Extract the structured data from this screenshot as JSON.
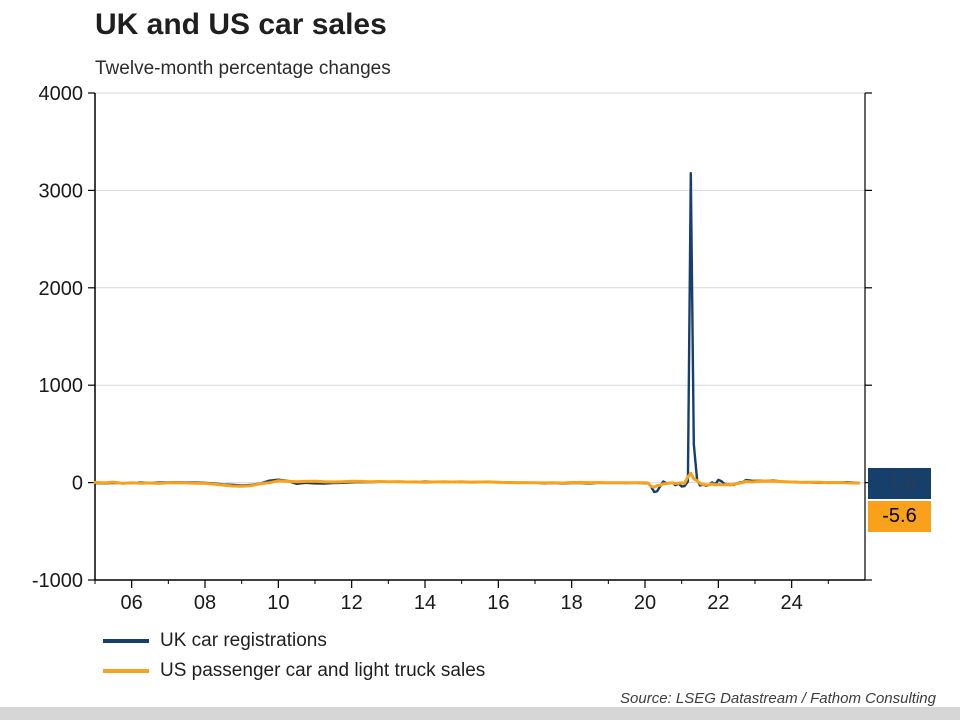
{
  "page": {
    "title": "UK and US car sales",
    "subtitle": "Twelve-month percentage changes",
    "source": "Source: LSEG Datastream / Fathom Consulting"
  },
  "colors": {
    "uk": "#16406b",
    "us": "#f9a11b",
    "grid": "#d9d9d9",
    "axis": "#000000",
    "strip": "#d6d6d6"
  },
  "badges": [
    {
      "label": "-1.6",
      "bg": "#16406b",
      "fg": "#2b3d52"
    },
    {
      "label": "-5.6",
      "bg": "#f9a11b",
      "fg": "#000000"
    }
  ],
  "legend": [
    {
      "label": "UK car registrations",
      "color": "#16406b"
    },
    {
      "label": "US passenger car and light truck sales",
      "color": "#f9a11b"
    }
  ],
  "chart_data": {
    "type": "line",
    "title": "UK and US car sales",
    "subtitle": "Twelve-month percentage changes",
    "xlabel": "",
    "ylabel": "",
    "xlim": [
      2005,
      2026
    ],
    "ylim": [
      -1000,
      4000
    ],
    "grid": "horizontal",
    "legend_position": "bottom-left",
    "y_ticks": [
      {
        "v": 4000,
        "label": "4000"
      },
      {
        "v": 3000,
        "label": "3000"
      },
      {
        "v": 2000,
        "label": "2000"
      },
      {
        "v": 1000,
        "label": "1000"
      },
      {
        "v": 0,
        "label": "0"
      },
      {
        "v": -1000,
        "label": "-1000"
      }
    ],
    "x_ticks": [
      {
        "v": 2006,
        "label": "06"
      },
      {
        "v": 2008,
        "label": "08"
      },
      {
        "v": 2010,
        "label": "10"
      },
      {
        "v": 2012,
        "label": "12"
      },
      {
        "v": 2014,
        "label": "14"
      },
      {
        "v": 2016,
        "label": "16"
      },
      {
        "v": 2018,
        "label": "18"
      },
      {
        "v": 2020,
        "label": "20"
      },
      {
        "v": 2022,
        "label": "22"
      },
      {
        "v": 2024,
        "label": "24"
      }
    ],
    "x_minor_ticks": [
      2005,
      2007,
      2009,
      2011,
      2013,
      2015,
      2017,
      2019,
      2021,
      2023,
      2025
    ],
    "annotations": [
      {
        "text": "-1.6",
        "series": "UK car registrations",
        "position": "end"
      },
      {
        "text": "-5.6",
        "series": "US passenger car and light truck sales",
        "position": "end"
      }
    ],
    "series": [
      {
        "name": "UK car registrations",
        "color": "#16406b",
        "width": 2.4,
        "points": [
          [
            2005,
            -5
          ],
          [
            2005.25,
            -8
          ],
          [
            2005.5,
            -3
          ],
          [
            2005.75,
            -6
          ],
          [
            2006,
            -4
          ],
          [
            2006.25,
            2
          ],
          [
            2006.5,
            -3
          ],
          [
            2006.75,
            1
          ],
          [
            2007,
            2
          ],
          [
            2007.25,
            3
          ],
          [
            2007.5,
            1
          ],
          [
            2007.75,
            2
          ],
          [
            2008,
            -2
          ],
          [
            2008.25,
            -8
          ],
          [
            2008.5,
            -18
          ],
          [
            2008.75,
            -23
          ],
          [
            2009,
            -30
          ],
          [
            2009.25,
            -25
          ],
          [
            2009.5,
            -10
          ],
          [
            2009.75,
            20
          ],
          [
            2010,
            30
          ],
          [
            2010.25,
            18
          ],
          [
            2010.5,
            -12
          ],
          [
            2010.75,
            -2
          ],
          [
            2011,
            -8
          ],
          [
            2011.25,
            -10
          ],
          [
            2011.5,
            -5
          ],
          [
            2011.75,
            -2
          ],
          [
            2012,
            3
          ],
          [
            2012.25,
            6
          ],
          [
            2012.5,
            4
          ],
          [
            2012.75,
            8
          ],
          [
            2013,
            8
          ],
          [
            2013.25,
            10
          ],
          [
            2013.5,
            9
          ],
          [
            2013.75,
            7
          ],
          [
            2014,
            10
          ],
          [
            2014.25,
            8
          ],
          [
            2014.5,
            6
          ],
          [
            2014.75,
            7
          ],
          [
            2015,
            6
          ],
          [
            2015.25,
            5
          ],
          [
            2015.5,
            7
          ],
          [
            2015.75,
            4
          ],
          [
            2016,
            5
          ],
          [
            2016.25,
            2
          ],
          [
            2016.5,
            0
          ],
          [
            2016.75,
            -1
          ],
          [
            2017,
            -1
          ],
          [
            2017.25,
            -8
          ],
          [
            2017.5,
            -5
          ],
          [
            2017.75,
            -10
          ],
          [
            2018,
            -5
          ],
          [
            2018.25,
            -4
          ],
          [
            2018.5,
            -8
          ],
          [
            2018.75,
            -2
          ],
          [
            2019,
            -3
          ],
          [
            2019.25,
            -2
          ],
          [
            2019.5,
            -4
          ],
          [
            2019.75,
            -2
          ],
          [
            2020,
            -7
          ],
          [
            2020.08,
            -3
          ],
          [
            2020.17,
            -44
          ],
          [
            2020.25,
            -97
          ],
          [
            2020.33,
            -89
          ],
          [
            2020.42,
            -35
          ],
          [
            2020.5,
            11
          ],
          [
            2020.58,
            -6
          ],
          [
            2020.67,
            -4
          ],
          [
            2020.75,
            -1
          ],
          [
            2020.83,
            -27
          ],
          [
            2020.92,
            -11
          ],
          [
            2021,
            -40
          ],
          [
            2021.08,
            -36
          ],
          [
            2021.17,
            11
          ],
          [
            2021.25,
            3177
          ],
          [
            2021.33,
            395
          ],
          [
            2021.42,
            28
          ],
          [
            2021.5,
            -30
          ],
          [
            2021.58,
            -22
          ],
          [
            2021.67,
            -34
          ],
          [
            2021.75,
            -25
          ],
          [
            2021.83,
            2
          ],
          [
            2021.92,
            -18
          ],
          [
            2022,
            28
          ],
          [
            2022.08,
            15
          ],
          [
            2022.17,
            -14
          ],
          [
            2022.25,
            -16
          ],
          [
            2022.33,
            -21
          ],
          [
            2022.42,
            -24
          ],
          [
            2022.5,
            -9
          ],
          [
            2022.58,
            1
          ],
          [
            2022.67,
            5
          ],
          [
            2022.75,
            26
          ],
          [
            2022.83,
            24
          ],
          [
            2022.92,
            18
          ],
          [
            2023,
            18
          ],
          [
            2023.25,
            17
          ],
          [
            2023.5,
            21
          ],
          [
            2023.75,
            10
          ],
          [
            2024,
            8
          ],
          [
            2024.25,
            3
          ],
          [
            2024.5,
            2
          ],
          [
            2024.75,
            -2
          ],
          [
            2025,
            2
          ],
          [
            2025.25,
            -1
          ],
          [
            2025.5,
            4
          ],
          [
            2025.83,
            -1.6
          ]
        ]
      },
      {
        "name": "US passenger car and light truck sales",
        "color": "#f9a11b",
        "width": 3,
        "points": [
          [
            2005,
            2
          ],
          [
            2005.25,
            -3
          ],
          [
            2005.5,
            5
          ],
          [
            2005.75,
            -8
          ],
          [
            2006,
            -2
          ],
          [
            2006.25,
            -6
          ],
          [
            2006.5,
            -4
          ],
          [
            2006.75,
            -8
          ],
          [
            2007,
            -3
          ],
          [
            2007.25,
            -2
          ],
          [
            2007.5,
            -4
          ],
          [
            2007.75,
            -6
          ],
          [
            2008,
            -8
          ],
          [
            2008.25,
            -15
          ],
          [
            2008.5,
            -26
          ],
          [
            2008.75,
            -35
          ],
          [
            2009,
            -38
          ],
          [
            2009.25,
            -33
          ],
          [
            2009.5,
            -12
          ],
          [
            2009.75,
            -2
          ],
          [
            2010,
            18
          ],
          [
            2010.25,
            14
          ],
          [
            2010.5,
            8
          ],
          [
            2010.75,
            12
          ],
          [
            2011,
            14
          ],
          [
            2011.25,
            8
          ],
          [
            2011.5,
            6
          ],
          [
            2011.75,
            9
          ],
          [
            2012,
            14
          ],
          [
            2012.25,
            12
          ],
          [
            2012.5,
            8
          ],
          [
            2012.75,
            11
          ],
          [
            2013,
            8
          ],
          [
            2013.25,
            9
          ],
          [
            2013.5,
            6
          ],
          [
            2013.75,
            7
          ],
          [
            2014,
            4
          ],
          [
            2014.25,
            6
          ],
          [
            2014.5,
            8
          ],
          [
            2014.75,
            6
          ],
          [
            2015,
            8
          ],
          [
            2015.25,
            4
          ],
          [
            2015.5,
            6
          ],
          [
            2015.75,
            7
          ],
          [
            2016,
            2
          ],
          [
            2016.25,
            1
          ],
          [
            2016.5,
            -2
          ],
          [
            2016.75,
            0
          ],
          [
            2017,
            -2
          ],
          [
            2017.25,
            -3
          ],
          [
            2017.5,
            -1
          ],
          [
            2017.75,
            -4
          ],
          [
            2018,
            1
          ],
          [
            2018.25,
            2
          ],
          [
            2018.5,
            0
          ],
          [
            2018.75,
            1
          ],
          [
            2019,
            -2
          ],
          [
            2019.25,
            -1
          ],
          [
            2019.5,
            -2
          ],
          [
            2019.75,
            -1
          ],
          [
            2020,
            -1
          ],
          [
            2020.08,
            -4
          ],
          [
            2020.17,
            -38
          ],
          [
            2020.25,
            -47
          ],
          [
            2020.33,
            -30
          ],
          [
            2020.42,
            -27
          ],
          [
            2020.5,
            -12
          ],
          [
            2020.58,
            -10
          ],
          [
            2020.67,
            -5
          ],
          [
            2020.75,
            -3
          ],
          [
            2020.83,
            -9
          ],
          [
            2020.92,
            -6
          ],
          [
            2021,
            -3
          ],
          [
            2021.08,
            -7
          ],
          [
            2021.17,
            60
          ],
          [
            2021.25,
            95
          ],
          [
            2021.33,
            40
          ],
          [
            2021.42,
            18
          ],
          [
            2021.5,
            -8
          ],
          [
            2021.58,
            -18
          ],
          [
            2021.67,
            -25
          ],
          [
            2021.75,
            -22
          ],
          [
            2021.83,
            -14
          ],
          [
            2021.92,
            -24
          ],
          [
            2022,
            -18
          ],
          [
            2022.08,
            -22
          ],
          [
            2022.17,
            -24
          ],
          [
            2022.25,
            -19
          ],
          [
            2022.33,
            -25
          ],
          [
            2022.42,
            -15
          ],
          [
            2022.5,
            -11
          ],
          [
            2022.58,
            -6
          ],
          [
            2022.67,
            2
          ],
          [
            2022.75,
            12
          ],
          [
            2022.83,
            8
          ],
          [
            2022.92,
            6
          ],
          [
            2023,
            8
          ],
          [
            2023.25,
            16
          ],
          [
            2023.5,
            14
          ],
          [
            2023.75,
            10
          ],
          [
            2024,
            6
          ],
          [
            2024.25,
            2
          ],
          [
            2024.5,
            4
          ],
          [
            2024.75,
            3
          ],
          [
            2025,
            -2
          ],
          [
            2025.25,
            1
          ],
          [
            2025.5,
            -3
          ],
          [
            2025.83,
            -5.6
          ]
        ]
      }
    ]
  }
}
